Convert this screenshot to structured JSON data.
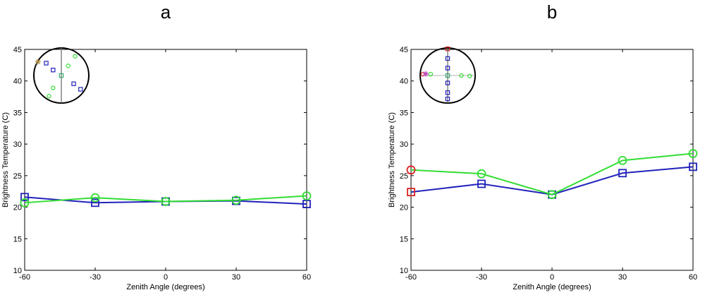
{
  "chart_data": [
    {
      "type": "line",
      "title": "a",
      "xlabel": "Zenith Angle (degrees)",
      "ylabel": "Brightness Temperature (C)",
      "xlim": [
        -60,
        60
      ],
      "ylim": [
        10,
        45
      ],
      "xticks": [
        -60,
        -30,
        0,
        30,
        60
      ],
      "yticks": [
        10,
        15,
        20,
        25,
        30,
        35,
        40,
        45
      ],
      "grid": false,
      "series": [
        {
          "color": "#2222bb",
          "marker": "square",
          "x": [
            -60,
            -30,
            0,
            30,
            60
          ],
          "y": [
            21.6,
            20.7,
            20.9,
            21.0,
            20.5
          ]
        },
        {
          "color": "#33dd33",
          "marker": "circle",
          "x": [
            -60,
            -30,
            0,
            30,
            60
          ],
          "y": [
            20.7,
            21.5,
            20.9,
            21.1,
            21.8
          ]
        }
      ],
      "inset": {
        "line": "vertical",
        "markers": [
          {
            "shape": "square",
            "color": "#2222bb",
            "x": -0.55,
            "y": 0.45
          },
          {
            "shape": "square",
            "color": "#2222bb",
            "x": -0.3,
            "y": 0.2
          },
          {
            "shape": "square",
            "color": "#2222bb",
            "x": 0.45,
            "y": -0.3
          },
          {
            "shape": "square",
            "color": "#2222bb",
            "x": 0.7,
            "y": -0.5
          },
          {
            "shape": "circle",
            "color": "#33dd33",
            "x": 0.5,
            "y": 0.7
          },
          {
            "shape": "circle",
            "color": "#33dd33",
            "x": 0.25,
            "y": 0.35
          },
          {
            "shape": "circle",
            "color": "#33dd33",
            "x": -0.3,
            "y": -0.45
          },
          {
            "shape": "circle",
            "color": "#33dd33",
            "x": -0.45,
            "y": -0.75
          },
          {
            "shape": "square",
            "color": "#33aa66",
            "x": 0,
            "y": 0
          },
          {
            "shape": "star",
            "color": "#aa8844",
            "x": -0.85,
            "y": 0.5
          }
        ]
      }
    },
    {
      "type": "line",
      "title": "b",
      "xlabel": "Zenith Angle (degrees)",
      "ylabel": "Brightness Temperature (C)",
      "xlim": [
        -60,
        60
      ],
      "ylim": [
        10,
        45
      ],
      "xticks": [
        -60,
        -30,
        0,
        30,
        60
      ],
      "yticks": [
        10,
        15,
        20,
        25,
        30,
        35,
        40,
        45
      ],
      "grid": false,
      "series": [
        {
          "color": "#2222bb",
          "marker": "square",
          "x": [
            -60,
            -30,
            0,
            30,
            60
          ],
          "y": [
            22.4,
            23.7,
            22.0,
            25.4,
            26.4
          ]
        },
        {
          "color": "#33dd33",
          "marker": "circle",
          "x": [
            -60,
            -30,
            0,
            30,
            60
          ],
          "y": [
            25.9,
            25.3,
            22.0,
            27.4,
            28.5
          ]
        }
      ],
      "highlight_color": "#dd2222",
      "inset": {
        "line": "both",
        "markers": [
          {
            "shape": "square",
            "color": "#2222bb",
            "x": 0,
            "y": 0.62
          },
          {
            "shape": "square",
            "color": "#2222bb",
            "x": 0,
            "y": 0.27
          },
          {
            "shape": "square",
            "color": "#2222bb",
            "x": 0,
            "y": -0.27
          },
          {
            "shape": "square",
            "color": "#2222bb",
            "x": 0,
            "y": -0.62
          },
          {
            "shape": "square",
            "color": "#2222bb",
            "x": 0,
            "y": -0.85
          },
          {
            "shape": "square",
            "color": "#dd2222",
            "x": 0,
            "y": 0.97
          },
          {
            "shape": "circle",
            "color": "#33dd33",
            "x": -0.62,
            "y": 0.05
          },
          {
            "shape": "circle",
            "color": "#33dd33",
            "x": 0.5,
            "y": 0.0
          },
          {
            "shape": "circle",
            "color": "#33dd33",
            "x": 0.8,
            "y": -0.02
          },
          {
            "shape": "circle",
            "color": "#dd2222",
            "x": -0.9,
            "y": 0.05
          },
          {
            "shape": "square",
            "color": "#33aa66",
            "x": 0,
            "y": 0
          },
          {
            "shape": "star",
            "color": "#bb44bb",
            "x": -0.8,
            "y": 0.06
          }
        ]
      }
    }
  ]
}
